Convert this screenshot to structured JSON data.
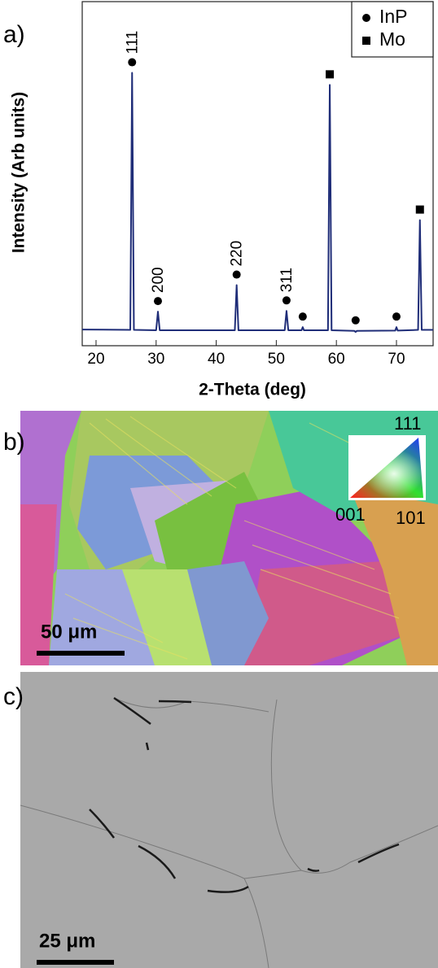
{
  "chart_data": {
    "type": "line",
    "panel_label": "a)",
    "x_label": "2-Theta (deg)",
    "y_label": "Intensity (Arb units)",
    "xlim": [
      17.7,
      76.1
    ],
    "ylim": [
      0,
      100
    ],
    "xticks": [
      20,
      30,
      40,
      50,
      60,
      70
    ],
    "series": [
      {
        "color": "#1f2d78",
        "x": [
          17.7,
          25.7,
          26.0,
          26.3,
          30.0,
          30.3,
          30.6,
          43.1,
          43.4,
          43.7,
          51.4,
          51.7,
          52.0,
          54.2,
          54.4,
          54.6,
          58.6,
          58.9,
          59.2,
          63.0,
          63.2,
          63.4,
          69.8,
          70.0,
          70.2,
          73.6,
          73.9,
          74.2,
          76.1
        ],
        "values": [
          4.7,
          4.6,
          79.3,
          4.6,
          4.5,
          9.9,
          4.5,
          4.5,
          17.6,
          4.5,
          4.5,
          10.1,
          4.5,
          4.5,
          5.4,
          4.5,
          4.5,
          75.8,
          4.5,
          4.3,
          4.0,
          4.3,
          4.4,
          5.4,
          4.4,
          4.6,
          36.5,
          4.6,
          4.6
        ]
      }
    ],
    "phases": [
      {
        "name": "InP",
        "symbol": "circle"
      },
      {
        "name": "Mo",
        "symbol": "square"
      }
    ],
    "peak_markers": [
      {
        "x": 26.0,
        "phase": 0,
        "label": "111"
      },
      {
        "x": 30.3,
        "phase": 0,
        "label": "200"
      },
      {
        "x": 43.4,
        "phase": 0,
        "label": "220"
      },
      {
        "x": 51.7,
        "phase": 0,
        "label": "311"
      },
      {
        "x": 54.4,
        "phase": 0
      },
      {
        "x": 58.9,
        "phase": 1
      },
      {
        "x": 63.2,
        "phase": 0
      },
      {
        "x": 70.0,
        "phase": 0
      },
      {
        "x": 73.9,
        "phase": 1
      }
    ],
    "legend_position": "upper right"
  },
  "ebsd": {
    "panel_label": "b)",
    "ipf": {
      "top": "111",
      "left": "001",
      "right": "101"
    },
    "scale_bar": "50 μm"
  },
  "sem": {
    "panel_label": "c)",
    "scale_bar": "25 μm"
  }
}
